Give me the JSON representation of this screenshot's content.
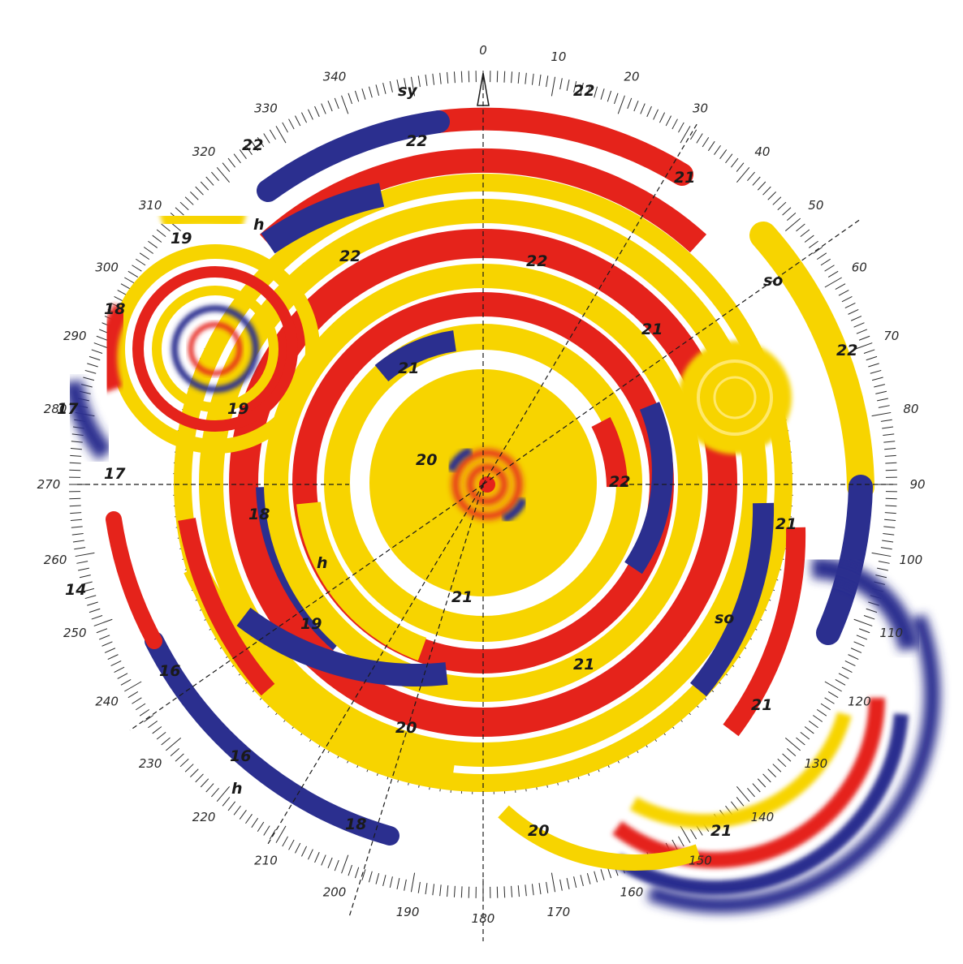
{
  "artwork": {
    "palette": {
      "yellow": "#f7d400",
      "red": "#e5231b",
      "blue": "#2b2f8f",
      "orange": "#f39a00",
      "ink": "#1a1a1a",
      "background": "#ffffff"
    },
    "compass_degree_labels": [
      "330",
      "0",
      "10",
      "20",
      "30",
      "40",
      "50",
      "60",
      "70",
      "80",
      "90",
      "100",
      "110",
      "120",
      "130",
      "140",
      "150",
      "160",
      "170",
      "180",
      "190",
      "200",
      "210",
      "220",
      "230",
      "240",
      "250",
      "260",
      "270",
      "280",
      "290",
      "300",
      "310",
      "320",
      "340"
    ],
    "region_labels": {
      "sy": "sy",
      "so_upper": "so",
      "so_lower": "so",
      "h_upper": "h",
      "h_mid": "h",
      "h_lower": "h",
      "n22_top": "22",
      "n22_topleft": "22",
      "n22_inner_top": "22",
      "n22_ring": "22",
      "n22_inner_left": "22",
      "n22_right": "22",
      "n22_center_right": "22",
      "n21_ne": "21",
      "n21_right": "21",
      "n21_center": "21",
      "n21_inner_lower": "21",
      "n21_lower": "21",
      "n21_right_lower": "21",
      "n21_se": "21",
      "n21_bottom_right": "21",
      "n20_center": "20",
      "n20_lower": "20",
      "n20_bottom": "20",
      "n19_top": "19",
      "n19_left": "19",
      "n19_lower": "19",
      "n18_left": "18",
      "n18_mid": "18",
      "n18_bottom": "18",
      "n17_left": "17",
      "n17_axis": "17",
      "n16_lower": "16",
      "n16_bottom": "16",
      "n14": "14"
    }
  }
}
